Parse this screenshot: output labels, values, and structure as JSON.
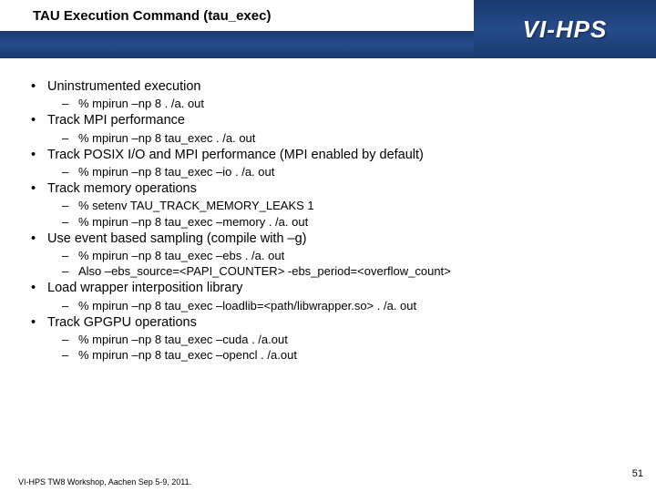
{
  "header": {
    "title": "TAU Execution Command (tau_exec)",
    "logo": "VI-HPS"
  },
  "bullets": [
    {
      "level": 1,
      "text": "Uninstrumented execution"
    },
    {
      "level": 2,
      "text": "% mpirun –np 8 . /a. out"
    },
    {
      "level": 1,
      "text": "Track MPI performance"
    },
    {
      "level": 2,
      "text": "% mpirun –np 8  tau_exec . /a. out"
    },
    {
      "level": 1,
      "text": "Track POSIX I/O and MPI performance (MPI enabled by default)"
    },
    {
      "level": 2,
      "text": "% mpirun –np 8 tau_exec –io . /a. out"
    },
    {
      "level": 1,
      "text": "Track memory operations"
    },
    {
      "level": 2,
      "text": "% setenv TAU_TRACK_MEMORY_LEAKS   1"
    },
    {
      "level": 2,
      "text": "% mpirun –np 8 tau_exec –memory . /a. out"
    },
    {
      "level": 1,
      "text": "Use event based sampling (compile with –g)"
    },
    {
      "level": 2,
      "text": "% mpirun –np 8 tau_exec –ebs . /a. out"
    },
    {
      "level": 2,
      "text": "Also –ebs_source=<PAPI_COUNTER> -ebs_period=<overflow_count>"
    },
    {
      "level": 1,
      "text": "Load wrapper interposition library"
    },
    {
      "level": 2,
      "text": "% mpirun –np 8 tau_exec –loadlib=<path/libwrapper.so> . /a. out"
    },
    {
      "level": 1,
      "text": "Track GPGPU operations"
    },
    {
      "level": 2,
      "text": "% mpirun –np 8 tau_exec –cuda . /a.out"
    },
    {
      "level": 2,
      "text": "% mpirun –np 8 tau_exec –opencl . /a.out"
    }
  ],
  "footer": "VI-HPS TW8 Workshop, Aachen Sep 5-9, 2011.",
  "page_number": "51",
  "colors": {
    "header_bg": "#1a3a6e",
    "text": "#000000",
    "logo_text": "#ffffff"
  }
}
